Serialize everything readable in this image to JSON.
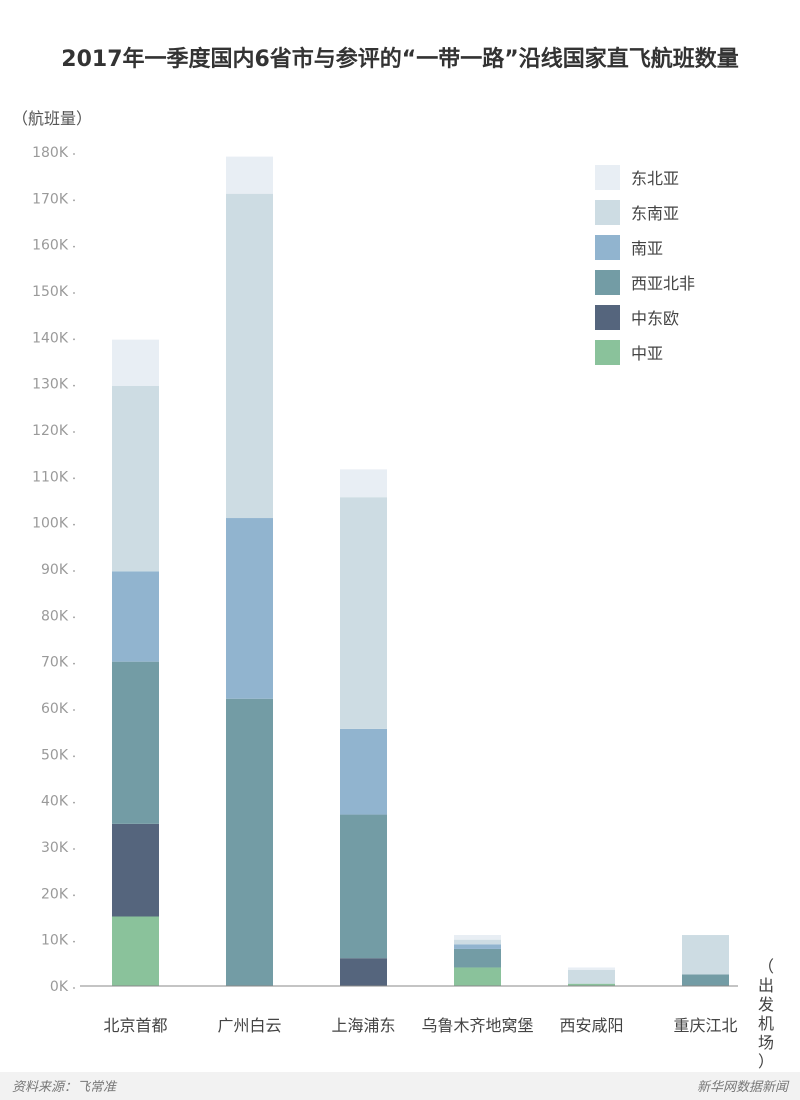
{
  "chart_data": {
    "type": "bar",
    "stacked": true,
    "title": "2017年一季度国内6省市与参评的“一带一路”沿线国家直飞航班数量",
    "ylabel": "（航班量）",
    "xlabel_chars": [
      "（",
      "出",
      "发",
      "机",
      "场",
      "）"
    ],
    "ylim": [
      0,
      180000
    ],
    "yticks": [
      {
        "value": 0,
        "label": "0K"
      },
      {
        "value": 10000,
        "label": "10K"
      },
      {
        "value": 20000,
        "label": "20K"
      },
      {
        "value": 30000,
        "label": "30K"
      },
      {
        "value": 40000,
        "label": "40K"
      },
      {
        "value": 50000,
        "label": "50K"
      },
      {
        "value": 60000,
        "label": "60K"
      },
      {
        "value": 70000,
        "label": "70K"
      },
      {
        "value": 80000,
        "label": "80K"
      },
      {
        "value": 90000,
        "label": "90K"
      },
      {
        "value": 100000,
        "label": "100K"
      },
      {
        "value": 110000,
        "label": "110K"
      },
      {
        "value": 120000,
        "label": "120K"
      },
      {
        "value": 130000,
        "label": "130K"
      },
      {
        "value": 140000,
        "label": "140K"
      },
      {
        "value": 150000,
        "label": "150K"
      },
      {
        "value": 160000,
        "label": "160K"
      },
      {
        "value": 170000,
        "label": "170K"
      },
      {
        "value": 180000,
        "label": "180K"
      }
    ],
    "categories": [
      "北京首都",
      "广州白云",
      "上海浦东",
      "乌鲁木齐地窝堡",
      "西安咸阳",
      "重庆江北"
    ],
    "series": [
      {
        "name": "中亚",
        "color": "#8ac29b",
        "values": [
          15000,
          0,
          0,
          4000,
          500,
          0
        ]
      },
      {
        "name": "中东欧",
        "color": "#55657d",
        "values": [
          20000,
          0,
          6000,
          0,
          0,
          0
        ]
      },
      {
        "name": "西亚北非",
        "color": "#739ca5",
        "values": [
          35000,
          62000,
          31000,
          4000,
          0,
          2500
        ]
      },
      {
        "name": "南亚",
        "color": "#91b4cf",
        "values": [
          19500,
          39000,
          18500,
          1000,
          0,
          0
        ]
      },
      {
        "name": "东南亚",
        "color": "#cddce3",
        "values": [
          40000,
          70000,
          50000,
          1000,
          3000,
          8500
        ]
      },
      {
        "name": "东北亚",
        "color": "#e8eef4",
        "values": [
          10000,
          8000,
          6000,
          1000,
          500,
          0
        ]
      }
    ],
    "legend_position": "top-right",
    "grid": false
  },
  "footer": {
    "source": "资料来源：飞常准",
    "credit": "新华网数据新闻"
  }
}
